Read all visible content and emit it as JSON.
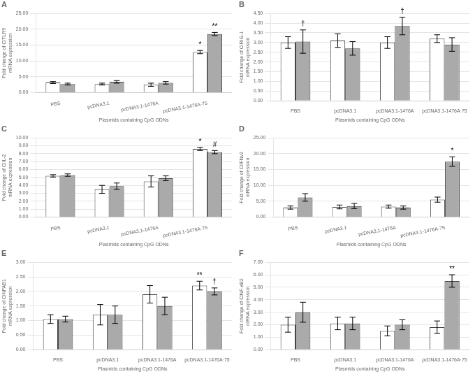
{
  "chart_data": [
    {
      "type": "bar",
      "title": "A",
      "y_label": "Fold change of CiTLR9\nmRNA expression",
      "x_label": "Plasmids containing CpG ODNs",
      "categories": [
        "PBS",
        "pcDNA3.1",
        "pcDNA3.1-1476A",
        "pcDNA3.1-1476A·75"
      ],
      "series": [
        {
          "color": "#ffffff",
          "values": [
            3.2,
            2.7,
            2.5,
            12.8
          ],
          "errors": [
            0.3,
            0.3,
            0.5,
            0.5
          ],
          "annotations": [
            {
              "category": "pcDNA3.1-1476A·75",
              "text": "*"
            }
          ]
        },
        {
          "color": "#aaaaaa",
          "values": [
            2.7,
            3.4,
            3.1,
            18.5
          ],
          "errors": [
            0.3,
            0.4,
            0.4,
            0.5
          ],
          "annotations": [
            {
              "category": "pcDNA3.1-1476A·75",
              "text": "**"
            }
          ]
        }
      ],
      "ylim": [
        0,
        25
      ],
      "yticks": [
        {
          "value": 0,
          "label": "0.00"
        },
        {
          "value": 5.0,
          "label": "5.00"
        },
        {
          "value": 10.0,
          "label": "10.00"
        },
        {
          "value": 15.0,
          "label": "15.00"
        },
        {
          "value": 20.0,
          "label": "20.00"
        },
        {
          "value": 25.0,
          "label": "25.00"
        }
      ],
      "grid": true
    },
    {
      "type": "bar",
      "title": "B",
      "y_label": "Fold change of CiRIG-1\nmRNA expression",
      "x_label": "Plasmids containing CpG ODNs",
      "categories": [
        "PBS",
        "pcDNA3.1",
        "pcDNA3.1-1476A",
        "pcDNA3.1-1476A·75"
      ],
      "series": [
        {
          "color": "#ffffff",
          "values": [
            3.0,
            3.1,
            3.0,
            3.2
          ],
          "errors": [
            0.3,
            0.35,
            0.3,
            0.2
          ]
        },
        {
          "color": "#aaaaaa",
          "values": [
            3.05,
            2.7,
            3.85,
            2.9
          ],
          "errors": [
            0.6,
            0.35,
            0.45,
            0.35
          ],
          "annotations": [
            {
              "category": "PBS",
              "text": "†"
            },
            {
              "category": "pcDNA3.1-1476A",
              "text": "†"
            }
          ]
        }
      ],
      "ylim": [
        0,
        4.5
      ],
      "yticks": [
        {
          "value": 0,
          "label": "0.00"
        },
        {
          "value": 0.5,
          "label": "0.50"
        },
        {
          "value": 1.0,
          "label": "1.00"
        },
        {
          "value": 1.5,
          "label": "1.50"
        },
        {
          "value": 2.0,
          "label": "2.00"
        },
        {
          "value": 2.5,
          "label": "2.50"
        },
        {
          "value": 3.0,
          "label": "3.00"
        },
        {
          "value": 3.5,
          "label": "3.50"
        },
        {
          "value": 4.0,
          "label": "4.00"
        },
        {
          "value": 4.5,
          "label": "4.50"
        }
      ],
      "grid": true
    },
    {
      "type": "bar",
      "title": "C",
      "y_label": "Fold change of CiIL-2\nmRNA expression",
      "x_label": "Plasmids containing CpG ODNs",
      "categories": [
        "PBS",
        "pcDNA3.1",
        "pcDNA3.1-1476A",
        "pcDNA3.1-1476A·75"
      ],
      "series": [
        {
          "color": "#ffffff",
          "values": [
            5.2,
            3.5,
            4.5,
            8.6
          ],
          "errors": [
            0.15,
            0.5,
            0.7,
            0.2
          ],
          "annotations": [
            {
              "category": "pcDNA3.1-1476A·75",
              "text": "*"
            }
          ]
        },
        {
          "color": "#aaaaaa",
          "values": [
            5.3,
            3.9,
            4.9,
            8.2
          ],
          "errors": [
            0.15,
            0.4,
            0.3,
            0.2
          ],
          "annotations": [
            {
              "category": "pcDNA3.1-1476A·75",
              "text": "#"
            }
          ]
        }
      ],
      "ylim": [
        0,
        10.0
      ],
      "yticks": [
        {
          "value": 0,
          "label": "0.00"
        },
        {
          "value": 1.0,
          "label": "1.00"
        },
        {
          "value": 2.0,
          "label": "2.00"
        },
        {
          "value": 3.0,
          "label": "3.00"
        },
        {
          "value": 4.0,
          "label": "4.00"
        },
        {
          "value": 5.0,
          "label": "5.00"
        },
        {
          "value": 6.0,
          "label": "6.00"
        },
        {
          "value": 7.0,
          "label": "7.00"
        },
        {
          "value": 8.0,
          "label": "8.00"
        },
        {
          "value": 9.0,
          "label": "9.00"
        },
        {
          "value": 10.0,
          "label": "10.00"
        }
      ],
      "grid": true
    },
    {
      "type": "bar",
      "title": "D",
      "y_label": "Fold change of CiIFNv2\nmRNA expression",
      "x_label": "Plasmids containing CpG ODNs",
      "categories": [
        "PBS",
        "pcDNA3.1",
        "pcDNA3.1-1476A",
        "pcDNA3.1-1476A·75"
      ],
      "series": [
        {
          "color": "#ffffff",
          "values": [
            3.0,
            3.2,
            3.3,
            5.5
          ],
          "errors": [
            0.5,
            0.6,
            0.5,
            0.8
          ]
        },
        {
          "color": "#aaaaaa",
          "values": [
            6.2,
            3.5,
            3.0,
            17.5
          ],
          "errors": [
            1.2,
            0.8,
            0.5,
            1.5
          ],
          "annotations": [
            {
              "category": "pcDNA3.1-1476A·75",
              "text": "*"
            }
          ]
        }
      ],
      "ylim": [
        0,
        25.0
      ],
      "yticks": [
        {
          "value": 0,
          "label": "0.00"
        },
        {
          "value": 5.0,
          "label": "5.00"
        },
        {
          "value": 10.0,
          "label": "10.00"
        },
        {
          "value": 15.0,
          "label": "15.00"
        },
        {
          "value": 20.0,
          "label": "20.00"
        },
        {
          "value": 25.0,
          "label": "25.00"
        }
      ],
      "grid": true
    },
    {
      "type": "bar",
      "title": "E",
      "y_label": "Fold change of CiNFAB1\nmRNA expression",
      "x_label": "Plasmids containing CpG ODNs",
      "categories": [
        "PBS",
        "pcDNA3.1",
        "pcDNA3.1-1476A",
        "pcDNA3.1-1476A·75"
      ],
      "series": [
        {
          "color": "#ffffff",
          "values": [
            1.05,
            1.2,
            1.9,
            2.2
          ],
          "errors": [
            0.15,
            0.35,
            0.3,
            0.15
          ],
          "annotations": [
            {
              "category": "pcDNA3.1-1476A·75",
              "text": "**"
            }
          ]
        },
        {
          "color": "#aaaaaa",
          "values": [
            1.05,
            1.2,
            1.5,
            2.0
          ],
          "errors": [
            0.1,
            0.3,
            0.3,
            0.12
          ],
          "annotations": [
            {
              "category": "pcDNA3.1-1476A·75",
              "text": "†"
            }
          ]
        }
      ],
      "ylim": [
        0,
        3.0
      ],
      "yticks": [
        {
          "value": 0,
          "label": "0.00"
        },
        {
          "value": 0.5,
          "label": "0.50"
        },
        {
          "value": 1.0,
          "label": "1.00"
        },
        {
          "value": 1.5,
          "label": "1.50"
        },
        {
          "value": 2.0,
          "label": "2.00"
        },
        {
          "value": 2.5,
          "label": "2.50"
        },
        {
          "value": 3.0,
          "label": "3.00"
        }
      ],
      "grid": true
    },
    {
      "type": "bar",
      "title": "F",
      "y_label": "Fold change of CiNF-κB2\nmRNA expression",
      "x_label": "Plasmids containing CpG ODNs",
      "categories": [
        "PBS",
        "pcDNA3.1",
        "pcDNA3.1-1476A",
        "pcDNA3.1-1476A·75"
      ],
      "series": [
        {
          "color": "#ffffff",
          "values": [
            2.0,
            2.1,
            1.5,
            1.8
          ],
          "errors": [
            0.6,
            0.5,
            0.4,
            0.5
          ]
        },
        {
          "color": "#aaaaaa",
          "values": [
            3.0,
            2.1,
            2.0,
            5.5
          ],
          "errors": [
            0.8,
            0.5,
            0.4,
            0.5
          ],
          "annotations": [
            {
              "category": "pcDNA3.1-1476A·75",
              "text": "**"
            }
          ]
        }
      ],
      "ylim": [
        0,
        7.0
      ],
      "yticks": [
        {
          "value": 0,
          "label": "0.00"
        },
        {
          "value": 1.0,
          "label": "1.00"
        },
        {
          "value": 2.0,
          "label": "2.00"
        },
        {
          "value": 3.0,
          "label": "3.00"
        },
        {
          "value": 4.0,
          "label": "4.00"
        },
        {
          "value": 5.0,
          "label": "5.00"
        },
        {
          "value": 6.0,
          "label": "6.00"
        },
        {
          "value": 7.0,
          "label": "7.00"
        }
      ],
      "grid": true
    }
  ]
}
